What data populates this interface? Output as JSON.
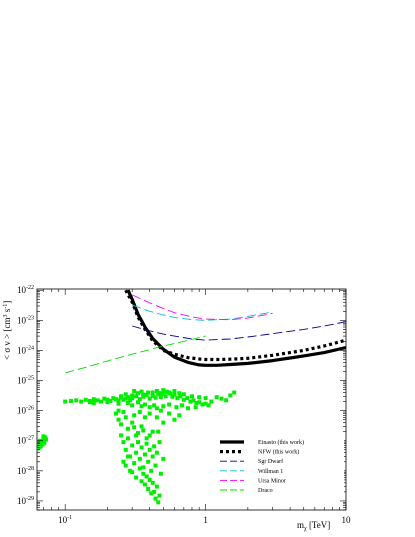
{
  "chart_data": {
    "type": "line",
    "xlabel": "m",
    "xlabel_sub": "χ",
    "xlabel_unit": "[TeV]",
    "ylabel": "< σ v > [cm",
    "ylabel_sup1": "3",
    "ylabel_mid": " s",
    "ylabel_sup2": "-1",
    "ylabel_end": "]",
    "x_scale": "log",
    "y_scale": "log",
    "xlim": [
      0.063,
      10
    ],
    "ylim": [
      5e-30,
      1.1e-22
    ],
    "x_ticks": [
      {
        "value": 0.1,
        "base": "10",
        "exp": "-1"
      },
      {
        "value": 1,
        "label": "1"
      },
      {
        "value": 10,
        "label": "10"
      }
    ],
    "y_ticks": [
      {
        "value": 1e-29,
        "base": "10",
        "exp": "-29"
      },
      {
        "value": 1e-28,
        "base": "10",
        "exp": "-28"
      },
      {
        "value": 1e-27,
        "base": "10",
        "exp": "-27"
      },
      {
        "value": 1e-26,
        "base": "10",
        "exp": "-26"
      },
      {
        "value": 1e-25,
        "base": "10",
        "exp": "-25"
      },
      {
        "value": 1e-24,
        "base": "10",
        "exp": "-24"
      },
      {
        "value": 1e-23,
        "base": "10",
        "exp": "-23"
      },
      {
        "value": 1e-22,
        "base": "10",
        "exp": "-22"
      }
    ],
    "legend_position": "bottom-right",
    "series": [
      {
        "name": "Einasto (this work)",
        "color": "#000000",
        "style": "solid-thick",
        "x": [
          0.28,
          0.3,
          0.33,
          0.37,
          0.42,
          0.5,
          0.6,
          0.75,
          0.9,
          1.0,
          1.2,
          1.5,
          2.0,
          3.0,
          4.0,
          5.0,
          7.0,
          10.0
        ],
        "y": [
          1e-22,
          5e-23,
          1.6e-23,
          6e-24,
          2.5e-24,
          1.1e-24,
          6e-25,
          4e-25,
          3.3e-25,
          3.2e-25,
          3.2e-25,
          3.4e-25,
          3.7e-25,
          4.6e-25,
          5.6e-25,
          6.6e-25,
          8.5e-25,
          1.25e-24
        ]
      },
      {
        "name": "NFW (this work)",
        "color": "#000000",
        "style": "dotted-thick",
        "x": [
          0.27,
          0.3,
          0.33,
          0.37,
          0.42,
          0.5,
          0.6,
          0.75,
          0.9,
          1.0,
          1.2,
          1.5,
          2.0,
          3.0,
          4.0,
          5.0,
          7.0,
          10.0
        ],
        "y": [
          1e-22,
          4e-23,
          1.3e-23,
          5e-24,
          2.1e-24,
          1e-24,
          7.5e-25,
          5.8e-25,
          5.2e-25,
          5e-25,
          5e-25,
          5.1e-25,
          5.5e-25,
          6.9e-25,
          8.5e-25,
          1e-24,
          1.4e-24,
          2.2e-24
        ]
      },
      {
        "name": "Sgr Dwarf",
        "color": "#00008b",
        "style": "long-dash",
        "x": [
          0.3,
          0.4,
          0.5,
          0.6,
          0.8,
          1.0,
          1.5,
          2.0,
          3.0,
          5.0,
          7.0,
          10.0
        ],
        "y": [
          6.5e-24,
          4.5e-24,
          3.5e-24,
          3e-24,
          2.4e-24,
          2.2e-24,
          2.4e-24,
          2.8e-24,
          3.6e-24,
          5e-24,
          6.5e-24,
          9e-24
        ]
      },
      {
        "name": "Willman 1",
        "color": "#00c0d0",
        "style": "long-dash",
        "x": [
          0.3,
          0.4,
          0.5,
          0.6,
          0.8,
          1.0,
          1.5,
          2.0,
          3.0
        ],
        "y": [
          3.2e-23,
          2e-23,
          1.5e-23,
          1.25e-23,
          1.05e-23,
          1e-23,
          1.1e-23,
          1.35e-23,
          1.9e-23
        ]
      },
      {
        "name": "Ursa Minor",
        "color": "#ff00ff",
        "style": "long-dash",
        "x": [
          0.3,
          0.4,
          0.5,
          0.6,
          0.8,
          1.0,
          1.5,
          2.0,
          3.0
        ],
        "y": [
          7e-23,
          3.8e-23,
          2.5e-23,
          1.8e-23,
          1.3e-23,
          1.1e-23,
          1.05e-23,
          1.2e-23,
          1.7e-23
        ]
      },
      {
        "name": "Draco",
        "color": "#00dd00",
        "style": "long-dash",
        "x": [
          0.1,
          0.15,
          0.2,
          0.3,
          0.5,
          0.7,
          1.0
        ],
        "y": [
          1.8e-25,
          3e-25,
          4.5e-25,
          7.5e-25,
          1.4e-24,
          2e-24,
          3e-24
        ]
      }
    ],
    "scatter_color": "#00ee00",
    "scatter_points": [
      [
        0.063,
        5.5e-28
      ],
      [
        0.064,
        7e-28
      ],
      [
        0.065,
        6e-28
      ],
      [
        0.066,
        8e-28
      ],
      [
        0.067,
        6.5e-28
      ],
      [
        0.068,
        9e-28
      ],
      [
        0.069,
        7.5e-28
      ],
      [
        0.07,
        1.1e-27
      ],
      [
        0.071,
        8.5e-28
      ],
      [
        0.072,
        1.3e-27
      ],
      [
        0.066,
        1e-27
      ],
      [
        0.07,
        1.4e-27
      ],
      [
        0.073,
        1.1e-27
      ],
      [
        0.1,
        2e-26
      ],
      [
        0.11,
        2.1e-26
      ],
      [
        0.12,
        2.2e-26
      ],
      [
        0.13,
        2e-26
      ],
      [
        0.14,
        2.3e-26
      ],
      [
        0.15,
        2.1e-26
      ],
      [
        0.16,
        2.4e-26
      ],
      [
        0.17,
        2.2e-26
      ],
      [
        0.18,
        2e-26
      ],
      [
        0.19,
        2.5e-26
      ],
      [
        0.2,
        2.3e-26
      ],
      [
        0.21,
        2.1e-26
      ],
      [
        0.22,
        2.6e-26
      ],
      [
        0.23,
        2.4e-26
      ],
      [
        0.24,
        2.2e-26
      ],
      [
        0.25,
        2.7e-26
      ],
      [
        0.26,
        2.3e-26
      ],
      [
        0.27,
        2.5e-26
      ],
      [
        0.28,
        2.8e-26
      ],
      [
        0.29,
        2.2e-26
      ],
      [
        0.3,
        2.6e-26
      ],
      [
        0.32,
        3e-26
      ],
      [
        0.34,
        2.4e-26
      ],
      [
        0.36,
        2.9e-26
      ],
      [
        0.38,
        3.3e-26
      ],
      [
        0.4,
        2.5e-26
      ],
      [
        0.42,
        3.1e-26
      ],
      [
        0.44,
        2.7e-26
      ],
      [
        0.46,
        3.5e-26
      ],
      [
        0.48,
        2.8e-26
      ],
      [
        0.5,
        3.6e-26
      ],
      [
        0.52,
        3e-26
      ],
      [
        0.55,
        4e-26
      ],
      [
        0.58,
        2.9e-26
      ],
      [
        0.6,
        3.4e-26
      ],
      [
        0.63,
        2.6e-26
      ],
      [
        0.66,
        3e-26
      ],
      [
        0.7,
        2.3e-26
      ],
      [
        0.74,
        2.6e-26
      ],
      [
        0.78,
        2e-26
      ],
      [
        0.82,
        2.2e-26
      ],
      [
        0.86,
        1.8e-26
      ],
      [
        0.9,
        1.9e-26
      ],
      [
        0.95,
        1.6e-26
      ],
      [
        1.0,
        1.7e-26
      ],
      [
        1.05,
        1.5e-26
      ],
      [
        0.15,
        1.9e-26
      ],
      [
        0.16,
        1.8e-26
      ],
      [
        0.2,
        1.9e-26
      ],
      [
        0.24,
        1.7e-26
      ],
      [
        0.28,
        1.8e-26
      ],
      [
        0.3,
        1.5e-26
      ],
      [
        0.33,
        1.9e-26
      ],
      [
        0.35,
        1.4e-26
      ],
      [
        0.37,
        1.6e-26
      ],
      [
        0.4,
        1.3e-26
      ],
      [
        0.43,
        1.5e-26
      ],
      [
        0.45,
        1.2e-26
      ],
      [
        0.5,
        1.4e-26
      ],
      [
        0.55,
        1.6e-26
      ],
      [
        0.62,
        1.3e-26
      ],
      [
        0.68,
        1.5e-26
      ],
      [
        0.75,
        1.2e-26
      ],
      [
        0.85,
        1.3e-26
      ],
      [
        0.42,
        4e-26
      ],
      [
        0.45,
        4.5e-26
      ],
      [
        0.47,
        3.8e-26
      ],
      [
        0.5,
        4.8e-26
      ],
      [
        0.53,
        4.2e-26
      ],
      [
        0.56,
        3.7e-26
      ],
      [
        0.6,
        4.5e-26
      ],
      [
        0.65,
        3.8e-26
      ],
      [
        0.7,
        3.5e-26
      ],
      [
        0.8,
        3e-26
      ],
      [
        0.9,
        2.8e-26
      ],
      [
        1.0,
        2.6e-26
      ],
      [
        1.3,
        2.5e-26
      ],
      [
        1.6,
        4e-26
      ],
      [
        1.5,
        3.2e-26
      ],
      [
        1.2,
        2.8e-26
      ],
      [
        1.1,
        2e-26
      ],
      [
        1.4,
        2.2e-26
      ],
      [
        0.25,
        3e-26
      ],
      [
        0.27,
        3.5e-26
      ],
      [
        0.3,
        3.2e-26
      ],
      [
        0.33,
        3.8e-26
      ],
      [
        0.36,
        3.4e-26
      ],
      [
        0.39,
        4e-26
      ],
      [
        0.35,
        4.3e-26
      ],
      [
        0.31,
        4.5e-26
      ],
      [
        0.23,
        8e-27
      ],
      [
        0.24,
        5e-27
      ],
      [
        0.25,
        3.5e-27
      ],
      [
        0.26,
        9e-27
      ],
      [
        0.27,
        6e-27
      ],
      [
        0.28,
        2.5e-27
      ],
      [
        0.3,
        4e-27
      ],
      [
        0.31,
        7e-27
      ],
      [
        0.32,
        1.5e-27
      ],
      [
        0.34,
        9e-27
      ],
      [
        0.35,
        3e-27
      ],
      [
        0.37,
        6e-27
      ],
      [
        0.38,
        1.2e-27
      ],
      [
        0.4,
        8e-27
      ],
      [
        0.42,
        2e-27
      ],
      [
        0.45,
        6e-27
      ],
      [
        0.48,
        1e-26
      ],
      [
        0.5,
        4e-27
      ],
      [
        0.55,
        8e-27
      ],
      [
        0.6,
        5e-27
      ],
      [
        0.65,
        7e-27
      ],
      [
        0.25,
        1.5e-27
      ],
      [
        0.26,
        9e-28
      ],
      [
        0.27,
        5e-28
      ],
      [
        0.28,
        1.2e-27
      ],
      [
        0.29,
        3e-28
      ],
      [
        0.3,
        7e-28
      ],
      [
        0.31,
        1.8e-28
      ],
      [
        0.32,
        4e-28
      ],
      [
        0.33,
        9e-28
      ],
      [
        0.34,
        2.5e-28
      ],
      [
        0.35,
        6e-28
      ],
      [
        0.36,
        1.3e-28
      ],
      [
        0.37,
        3.5e-28
      ],
      [
        0.38,
        8e-28
      ],
      [
        0.39,
        2e-28
      ],
      [
        0.4,
        5e-28
      ],
      [
        0.41,
        1e-28
      ],
      [
        0.42,
        3e-28
      ],
      [
        0.43,
        6.5e-28
      ],
      [
        0.44,
        1.5e-28
      ],
      [
        0.45,
        4e-28
      ],
      [
        0.47,
        9e-28
      ],
      [
        0.5,
        2.5e-28
      ],
      [
        0.3,
        9e-29
      ],
      [
        0.32,
        6e-29
      ],
      [
        0.34,
        1.2e-28
      ],
      [
        0.35,
        4.5e-29
      ],
      [
        0.36,
        8e-29
      ],
      [
        0.37,
        3.5e-29
      ],
      [
        0.38,
        6.5e-29
      ],
      [
        0.39,
        2.5e-29
      ],
      [
        0.4,
        5e-29
      ],
      [
        0.41,
        1.8e-29
      ],
      [
        0.42,
        4e-29
      ],
      [
        0.43,
        2e-29
      ],
      [
        0.44,
        1.2e-29
      ],
      [
        0.45,
        3e-29
      ],
      [
        0.46,
        9e-30
      ],
      [
        0.47,
        1.5e-29
      ],
      [
        0.48,
        8e-29
      ],
      [
        0.26,
        2e-28
      ],
      [
        0.27,
        1.5e-28
      ],
      [
        0.28,
        3e-28
      ],
      [
        0.29,
        1e-28
      ],
      [
        0.31,
        2.8e-27
      ],
      [
        0.33,
        1.8e-27
      ],
      [
        0.36,
        2.2e-27
      ],
      [
        0.4,
        1.5e-27
      ],
      [
        0.46,
        2e-27
      ],
      [
        0.24,
        1e-26
      ]
    ]
  }
}
